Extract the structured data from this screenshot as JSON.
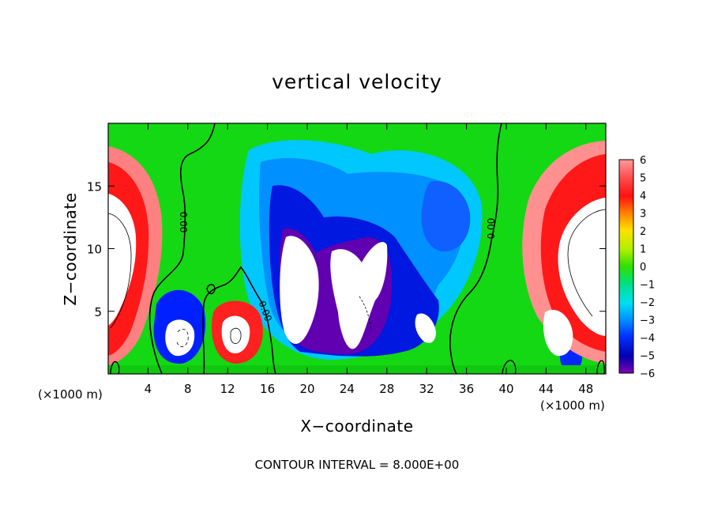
{
  "chart_data": {
    "type": "heatmap",
    "title": "vertical velocity",
    "xlabel": "X−coordinate",
    "ylabel": "Z−coordinate",
    "x_unit_left": "(×1000 m)",
    "x_unit_right": "(×1000 m)",
    "note": "CONTOUR INTERVAL = 8.000E+00",
    "xlim": [
      0,
      50
    ],
    "ylim": [
      0,
      20
    ],
    "x_ticks": [
      4,
      8,
      12,
      16,
      20,
      24,
      28,
      32,
      36,
      40,
      44,
      48
    ],
    "x_tick_labels": [
      "4",
      "8",
      "12",
      "16",
      "20",
      "24",
      "28",
      "32",
      "36",
      "40",
      "44",
      "48"
    ],
    "y_ticks": [
      5,
      10,
      15
    ],
    "y_tick_labels": [
      "5",
      "10",
      "15"
    ],
    "colorbar": {
      "range": [
        -6,
        6
      ],
      "ticks": [
        6,
        5,
        4,
        3,
        2,
        1,
        0,
        -1,
        -2,
        -3,
        -4,
        -5,
        -6
      ],
      "tick_labels": [
        "6",
        "5",
        "4",
        "3",
        "2",
        "1",
        "0",
        "−1",
        "−2",
        "−3",
        "−4",
        "−5",
        "−6"
      ]
    },
    "contour_label": "0.00",
    "colors": {
      "strong_down": "#7a00a8",
      "down": "#0000e0",
      "weak_down": "#00a0ff",
      "neutral": "#00d800",
      "weak_up": "#c8f000",
      "up": "#ff2020",
      "strong_up": "#ff9090",
      "out_of_range": "#ffffff"
    }
  }
}
